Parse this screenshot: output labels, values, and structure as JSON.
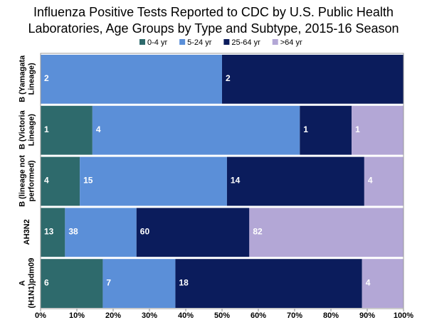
{
  "chart_data": {
    "type": "bar",
    "orientation": "horizontal",
    "stacking": "percent",
    "title": [
      "Influenza Positive Tests Reported to CDC by U.S. Public Health",
      "Laboratories, Age Groups by Type and Subtype, 2015-16 Season"
    ],
    "categories": [
      [
        "B (Yamagata",
        "Lineage)"
      ],
      [
        "B (Victoria",
        "Lineage)"
      ],
      [
        "B (lineage not",
        "performed)"
      ],
      [
        "AH3N2"
      ],
      [
        "A",
        "(H1N1)pdm09"
      ]
    ],
    "series": [
      {
        "name": "0-4 yr",
        "color": "#2e6a6c",
        "values": [
          0,
          1,
          4,
          13,
          6
        ]
      },
      {
        "name": "5-24 yr",
        "color": "#5b8fd8",
        "values": [
          2,
          4,
          15,
          38,
          7
        ]
      },
      {
        "name": "25-64 yr",
        "color": "#0b1c5c",
        "values": [
          2,
          1,
          14,
          60,
          18
        ]
      },
      {
        "name": ">64 yr",
        "color": "#b3a7d6",
        "values": [
          0,
          1,
          4,
          82,
          4
        ]
      }
    ],
    "xlim": [
      0,
      100
    ],
    "xticks": [
      {
        "value": 0,
        "label": "0%"
      },
      {
        "value": 10,
        "label": "10%"
      },
      {
        "value": 20,
        "label": "20%"
      },
      {
        "value": 30,
        "label": "30%"
      },
      {
        "value": 40,
        "label": "40%"
      },
      {
        "value": 50,
        "label": "50%"
      },
      {
        "value": 60,
        "label": "60%"
      },
      {
        "value": 70,
        "label": "70%"
      },
      {
        "value": 80,
        "label": "80%"
      },
      {
        "value": 90,
        "label": "90%"
      },
      {
        "value": 100,
        "label": "100%"
      }
    ],
    "legend": "top"
  }
}
